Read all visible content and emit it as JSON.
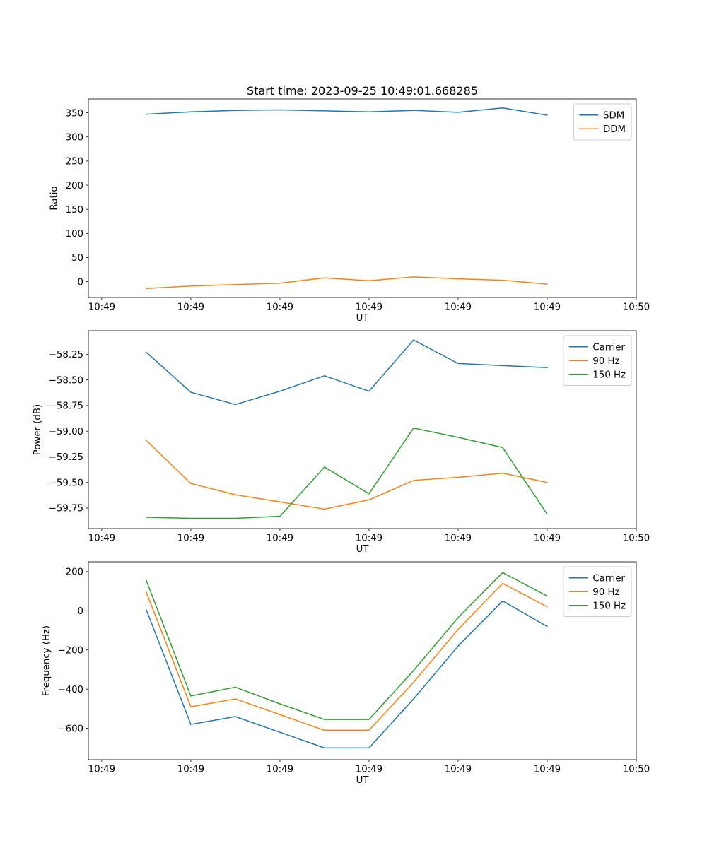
{
  "chart_data": [
    {
      "type": "line",
      "title": "Start time: 2023-09-25 10:49:01.668285",
      "xlabel": "UT",
      "ylabel": "Ratio",
      "grid": false,
      "legend_loc": "upper right",
      "xlim": [
        -1.5,
        60
      ],
      "ylim": [
        -32.7,
        378.7
      ],
      "x": [
        5,
        10,
        15,
        20,
        25,
        30,
        35,
        40,
        45,
        50
      ],
      "xticks": [
        {
          "value": 0,
          "label": "10:49"
        },
        {
          "value": 10,
          "label": "10:49"
        },
        {
          "value": 20,
          "label": "10:49"
        },
        {
          "value": 30,
          "label": "10:49"
        },
        {
          "value": 40,
          "label": "10:49"
        },
        {
          "value": 50,
          "label": "10:49"
        },
        {
          "value": 60,
          "label": "10:50"
        }
      ],
      "yticks": [
        {
          "value": 0,
          "label": "0"
        },
        {
          "value": 50,
          "label": "50"
        },
        {
          "value": 100,
          "label": "100"
        },
        {
          "value": 150,
          "label": "150"
        },
        {
          "value": 200,
          "label": "200"
        },
        {
          "value": 250,
          "label": "250"
        },
        {
          "value": 300,
          "label": "300"
        },
        {
          "value": 350,
          "label": "350"
        }
      ],
      "series": [
        {
          "name": "SDM",
          "color": "#1f77b4",
          "values": [
            347,
            352,
            355,
            356,
            354,
            352,
            355,
            351,
            360,
            345
          ]
        },
        {
          "name": "DDM",
          "color": "#ff7f0e",
          "values": [
            -14,
            -9,
            -6,
            -3,
            8,
            2,
            10,
            6,
            3,
            -5
          ]
        }
      ]
    },
    {
      "type": "line",
      "title": "",
      "xlabel": "UT",
      "ylabel": "Power (dB)",
      "grid": false,
      "legend_loc": "upper right",
      "xlim": [
        -1.5,
        60
      ],
      "ylim": [
        -59.95,
        -58.02
      ],
      "x": [
        5,
        10,
        15,
        20,
        25,
        30,
        35,
        40,
        45,
        50
      ],
      "xticks": [
        {
          "value": 0,
          "label": "10:49"
        },
        {
          "value": 10,
          "label": "10:49"
        },
        {
          "value": 20,
          "label": "10:49"
        },
        {
          "value": 30,
          "label": "10:49"
        },
        {
          "value": 40,
          "label": "10:49"
        },
        {
          "value": 50,
          "label": "10:49"
        },
        {
          "value": 60,
          "label": "10:50"
        }
      ],
      "yticks": [
        {
          "value": -59.75,
          "label": "−59.75"
        },
        {
          "value": -59.5,
          "label": "−59.50"
        },
        {
          "value": -59.25,
          "label": "−59.25"
        },
        {
          "value": -59.0,
          "label": "−59.00"
        },
        {
          "value": -58.75,
          "label": "−58.75"
        },
        {
          "value": -58.5,
          "label": "−58.50"
        },
        {
          "value": -58.25,
          "label": "−58.25"
        }
      ],
      "series": [
        {
          "name": "Carrier",
          "color": "#1f77b4",
          "values": [
            -58.23,
            -58.62,
            -58.74,
            -58.61,
            -58.46,
            -58.61,
            -58.11,
            -58.34,
            -58.36,
            -58.38
          ]
        },
        {
          "name": "90 Hz",
          "color": "#ff7f0e",
          "values": [
            -59.09,
            -59.51,
            -59.62,
            -59.69,
            -59.76,
            -59.67,
            -59.48,
            -59.45,
            -59.41,
            -59.5
          ]
        },
        {
          "name": "150 Hz",
          "color": "#2ca02c",
          "values": [
            -59.84,
            -59.85,
            -59.85,
            -59.83,
            -59.35,
            -59.61,
            -58.97,
            -59.06,
            -59.16,
            -59.81
          ]
        }
      ]
    },
    {
      "type": "line",
      "title": "",
      "xlabel": "UT",
      "ylabel": "Frequency (Hz)",
      "grid": false,
      "legend_loc": "upper right",
      "xlim": [
        -1.5,
        60
      ],
      "ylim": [
        -760,
        250
      ],
      "x": [
        5,
        10,
        15,
        20,
        25,
        30,
        35,
        40,
        45,
        50
      ],
      "xticks": [
        {
          "value": 0,
          "label": "10:49"
        },
        {
          "value": 10,
          "label": "10:49"
        },
        {
          "value": 20,
          "label": "10:49"
        },
        {
          "value": 30,
          "label": "10:49"
        },
        {
          "value": 40,
          "label": "10:49"
        },
        {
          "value": 50,
          "label": "10:49"
        },
        {
          "value": 60,
          "label": "10:50"
        }
      ],
      "yticks": [
        {
          "value": -600,
          "label": "−600"
        },
        {
          "value": -400,
          "label": "−400"
        },
        {
          "value": -200,
          "label": "−200"
        },
        {
          "value": 0,
          "label": "0"
        },
        {
          "value": 200,
          "label": "200"
        }
      ],
      "series": [
        {
          "name": "Carrier",
          "color": "#1f77b4",
          "values": [
            5,
            -580,
            -540,
            -620,
            -700,
            -700,
            -450,
            -180,
            50,
            -80
          ]
        },
        {
          "name": "90 Hz",
          "color": "#ff7f0e",
          "values": [
            95,
            -490,
            -450,
            -530,
            -610,
            -610,
            -365,
            -95,
            140,
            20
          ]
        },
        {
          "name": "150 Hz",
          "color": "#2ca02c",
          "values": [
            155,
            -435,
            -390,
            -475,
            -555,
            -555,
            -305,
            -35,
            195,
            75
          ]
        }
      ]
    }
  ]
}
